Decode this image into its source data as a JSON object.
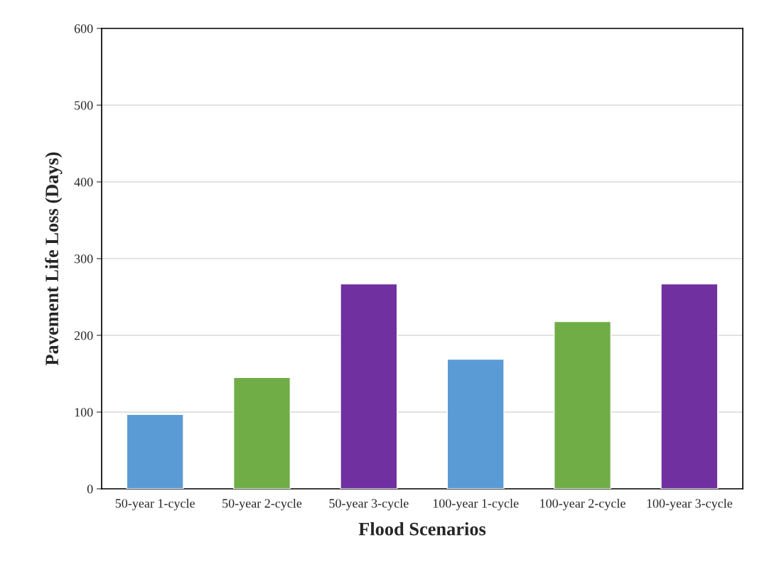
{
  "chart_data": {
    "type": "bar",
    "xlabel": "Flood Scenarios",
    "ylabel": "Pavement Life Loss (Days)",
    "categories": [
      "50-year 1-cycle",
      "50-year 2-cycle",
      "50-year 3-cycle",
      "100-year 1-cycle",
      "100-year 2-cycle",
      "100-year 3-cycle"
    ],
    "values": [
      97,
      145,
      267,
      169,
      218,
      267
    ],
    "colors": [
      "#5b9bd5",
      "#70ad47",
      "#7030a0",
      "#5b9bd5",
      "#70ad47",
      "#7030a0"
    ],
    "ylim": [
      0,
      600
    ],
    "yticks": [
      0,
      100,
      200,
      300,
      400,
      500,
      600
    ],
    "grid": "y",
    "legend": false
  }
}
